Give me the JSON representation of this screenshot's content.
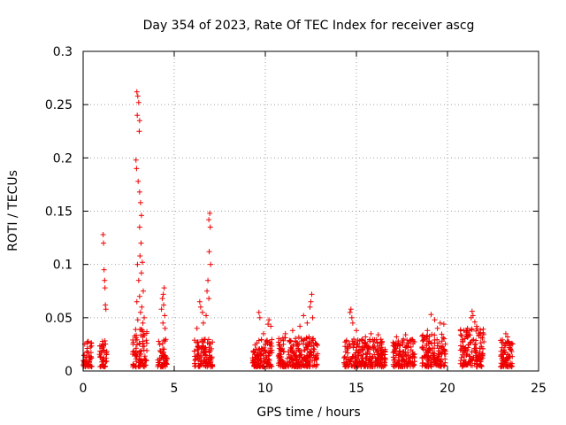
{
  "chart_data": {
    "type": "scatter",
    "title": "Day 354 of 2023, Rate Of TEC Index for receiver ascg",
    "xlabel": "GPS time / hours",
    "ylabel": "ROTI / TECUs",
    "xlim": [
      0,
      25
    ],
    "ylim": [
      0,
      0.3
    ],
    "xticks": [
      "0",
      "5",
      "10",
      "15",
      "20",
      "25"
    ],
    "yticks": [
      "0",
      "0.05",
      "0.1",
      "0.15",
      "0.2",
      "0.25",
      "0.3"
    ],
    "grid": true,
    "marker": "+",
    "color": "#ee0000",
    "clusters": [
      {
        "x": [
          0.0,
          0.5
        ],
        "base": [
          0.004,
          0.028
        ],
        "spikes": []
      },
      {
        "x": [
          0.9,
          1.3
        ],
        "base": [
          0.004,
          0.03
        ],
        "spikes": [
          [
            1.1,
            0.128
          ],
          [
            1.12,
            0.12
          ],
          [
            1.15,
            0.095
          ],
          [
            1.18,
            0.085
          ],
          [
            1.2,
            0.078
          ],
          [
            1.22,
            0.062
          ],
          [
            1.25,
            0.058
          ]
        ]
      },
      {
        "x": [
          2.7,
          3.5
        ],
        "base": [
          0.004,
          0.04
        ],
        "spikes": [
          [
            2.95,
            0.262
          ],
          [
            3.0,
            0.258
          ],
          [
            2.97,
            0.24
          ],
          [
            3.05,
            0.252
          ],
          [
            3.1,
            0.235
          ],
          [
            3.08,
            0.225
          ],
          [
            2.9,
            0.198
          ],
          [
            2.93,
            0.19
          ],
          [
            3.02,
            0.178
          ],
          [
            3.1,
            0.168
          ],
          [
            3.15,
            0.158
          ],
          [
            3.2,
            0.146
          ],
          [
            3.1,
            0.135
          ],
          [
            3.18,
            0.12
          ],
          [
            3.12,
            0.108
          ],
          [
            3.25,
            0.102
          ],
          [
            2.98,
            0.1
          ],
          [
            3.2,
            0.092
          ],
          [
            3.05,
            0.085
          ],
          [
            3.3,
            0.075
          ],
          [
            3.1,
            0.07
          ],
          [
            2.95,
            0.065
          ],
          [
            3.22,
            0.06
          ],
          [
            3.15,
            0.055
          ],
          [
            3.35,
            0.05
          ],
          [
            3.0,
            0.048
          ],
          [
            3.28,
            0.045
          ]
        ]
      },
      {
        "x": [
          4.1,
          4.6
        ],
        "base": [
          0.004,
          0.03
        ],
        "spikes": [
          [
            4.45,
            0.078
          ],
          [
            4.4,
            0.072
          ],
          [
            4.35,
            0.068
          ],
          [
            4.42,
            0.062
          ],
          [
            4.3,
            0.058
          ],
          [
            4.48,
            0.052
          ],
          [
            4.38,
            0.045
          ],
          [
            4.5,
            0.04
          ]
        ]
      },
      {
        "x": [
          6.1,
          7.1
        ],
        "base": [
          0.004,
          0.03
        ],
        "spikes": [
          [
            6.95,
            0.148
          ],
          [
            6.9,
            0.142
          ],
          [
            6.98,
            0.135
          ],
          [
            6.92,
            0.112
          ],
          [
            7.0,
            0.1
          ],
          [
            6.85,
            0.085
          ],
          [
            6.8,
            0.075
          ],
          [
            6.9,
            0.068
          ],
          [
            6.4,
            0.065
          ],
          [
            6.45,
            0.06
          ],
          [
            6.55,
            0.055
          ],
          [
            6.75,
            0.052
          ],
          [
            6.6,
            0.045
          ],
          [
            6.25,
            0.04
          ]
        ]
      },
      {
        "x": [
          9.3,
          10.4
        ],
        "base": [
          0.004,
          0.03
        ],
        "spikes": [
          [
            9.65,
            0.055
          ],
          [
            9.7,
            0.05
          ],
          [
            10.2,
            0.048
          ],
          [
            10.15,
            0.044
          ],
          [
            10.3,
            0.042
          ],
          [
            9.9,
            0.035
          ]
        ]
      },
      {
        "x": [
          10.7,
          12.9
        ],
        "base": [
          0.004,
          0.032
        ],
        "spikes": [
          [
            12.55,
            0.072
          ],
          [
            12.5,
            0.065
          ],
          [
            12.45,
            0.06
          ],
          [
            12.1,
            0.052
          ],
          [
            12.6,
            0.05
          ],
          [
            11.5,
            0.038
          ],
          [
            11.9,
            0.042
          ],
          [
            12.3,
            0.045
          ],
          [
            11.1,
            0.035
          ]
        ]
      },
      {
        "x": [
          14.3,
          16.6
        ],
        "base": [
          0.004,
          0.03
        ],
        "spikes": [
          [
            14.7,
            0.058
          ],
          [
            14.65,
            0.055
          ],
          [
            14.75,
            0.05
          ],
          [
            14.8,
            0.045
          ],
          [
            15.0,
            0.038
          ],
          [
            15.8,
            0.035
          ],
          [
            16.2,
            0.034
          ],
          [
            15.5,
            0.032
          ]
        ]
      },
      {
        "x": [
          17.0,
          18.2
        ],
        "base": [
          0.004,
          0.03
        ],
        "spikes": [
          [
            17.7,
            0.034
          ],
          [
            17.2,
            0.032
          ]
        ]
      },
      {
        "x": [
          18.6,
          19.9
        ],
        "base": [
          0.004,
          0.035
        ],
        "spikes": [
          [
            19.1,
            0.053
          ],
          [
            19.3,
            0.048
          ],
          [
            19.6,
            0.045
          ],
          [
            19.8,
            0.044
          ],
          [
            19.45,
            0.04
          ],
          [
            18.9,
            0.038
          ]
        ]
      },
      {
        "x": [
          20.7,
          22.0
        ],
        "base": [
          0.004,
          0.04
        ],
        "spikes": [
          [
            21.35,
            0.056
          ],
          [
            21.4,
            0.052
          ],
          [
            21.3,
            0.05
          ],
          [
            21.5,
            0.046
          ],
          [
            21.6,
            0.042
          ],
          [
            21.1,
            0.04
          ],
          [
            20.9,
            0.038
          ],
          [
            21.8,
            0.036
          ]
        ]
      },
      {
        "x": [
          22.9,
          23.6
        ],
        "base": [
          0.004,
          0.03
        ],
        "spikes": [
          [
            23.2,
            0.035
          ],
          [
            23.3,
            0.032
          ]
        ]
      }
    ]
  }
}
